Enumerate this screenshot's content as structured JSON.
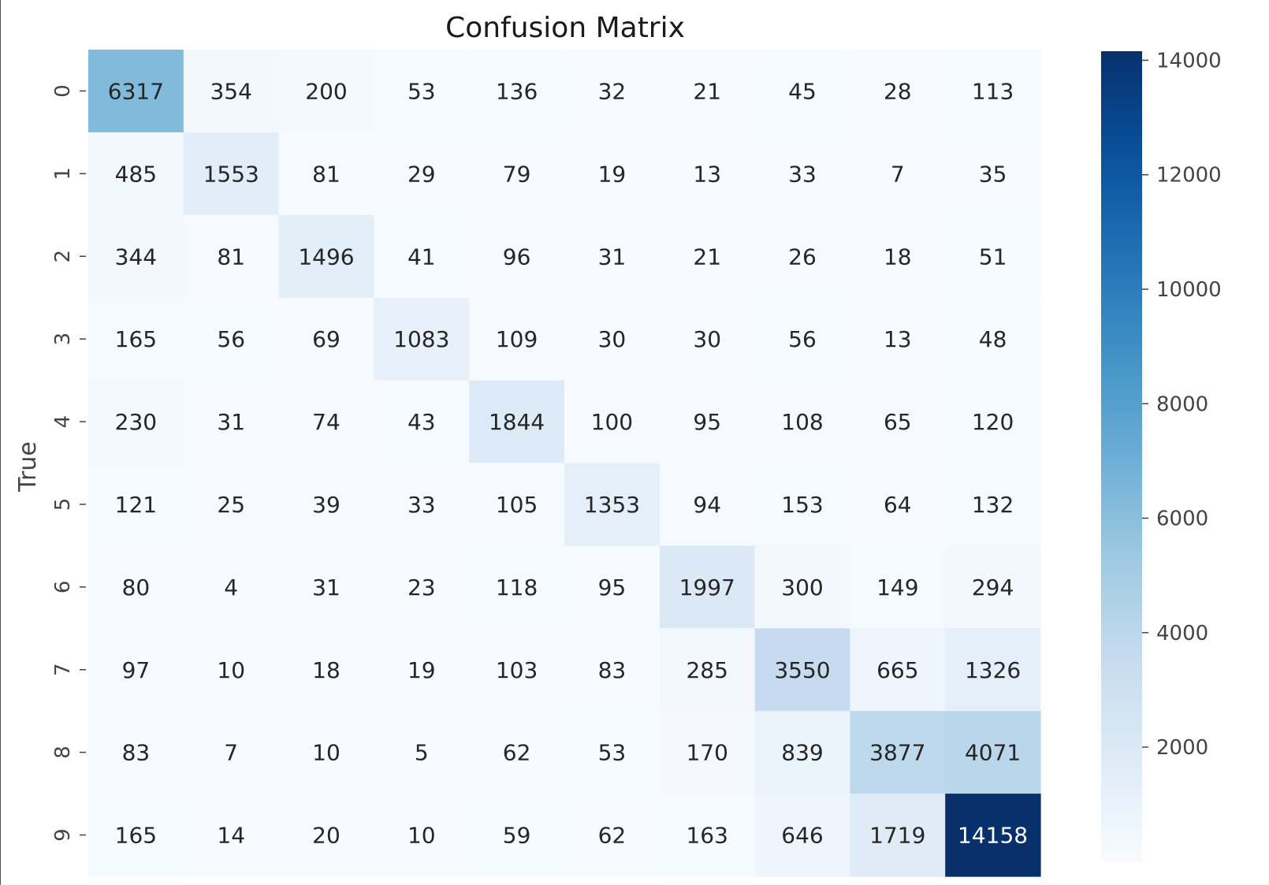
{
  "chart_data": {
    "type": "heatmap",
    "title": "Confusion Matrix",
    "ylabel": "True",
    "xlabel": "",
    "row_labels": [
      "0",
      "1",
      "2",
      "3",
      "4",
      "5",
      "6",
      "7",
      "8",
      "9"
    ],
    "col_labels": [],
    "values": [
      [
        6317,
        354,
        200,
        53,
        136,
        32,
        21,
        45,
        28,
        113
      ],
      [
        485,
        1553,
        81,
        29,
        79,
        19,
        13,
        33,
        7,
        35
      ],
      [
        344,
        81,
        1496,
        41,
        96,
        31,
        21,
        26,
        18,
        51
      ],
      [
        165,
        56,
        69,
        1083,
        109,
        30,
        30,
        56,
        13,
        48
      ],
      [
        230,
        31,
        74,
        43,
        1844,
        100,
        95,
        108,
        65,
        120
      ],
      [
        121,
        25,
        39,
        33,
        105,
        1353,
        94,
        153,
        64,
        132
      ],
      [
        80,
        4,
        31,
        23,
        118,
        95,
        1997,
        300,
        149,
        294
      ],
      [
        97,
        10,
        18,
        19,
        103,
        83,
        285,
        3550,
        665,
        1326
      ],
      [
        83,
        7,
        10,
        5,
        62,
        53,
        170,
        839,
        3877,
        4071
      ],
      [
        165,
        14,
        20,
        10,
        59,
        62,
        163,
        646,
        1719,
        14158
      ]
    ],
    "colormap": "Blues",
    "colorbar": {
      "ticks": [
        2000,
        4000,
        6000,
        8000,
        10000,
        12000,
        14000
      ],
      "min": 4,
      "max": 14158
    },
    "grid": false
  }
}
